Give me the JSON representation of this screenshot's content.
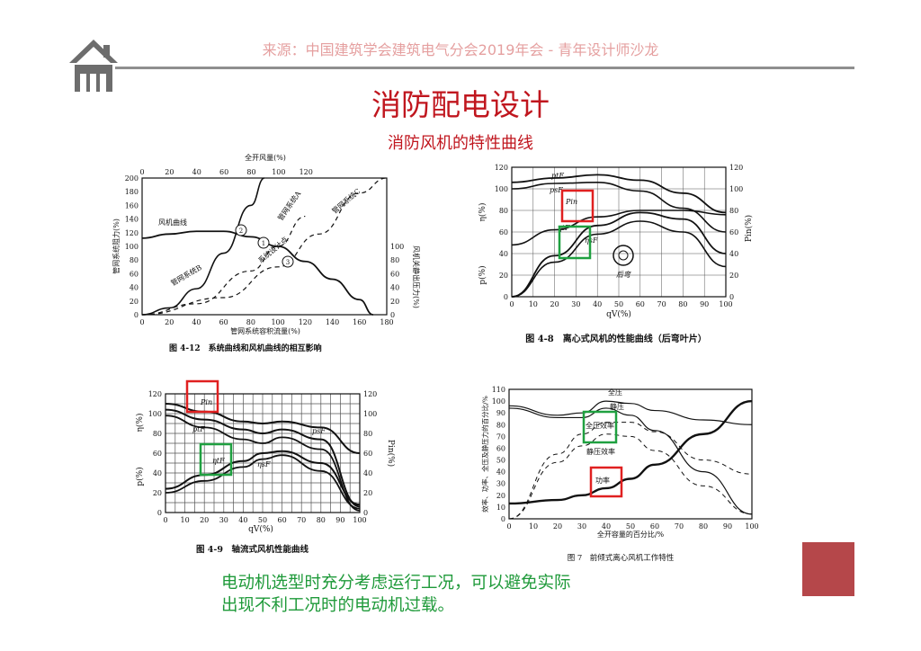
{
  "header": {
    "source": "来源：中国建筑学会建筑电气分会2019年会 - 青年设计师沙龙",
    "title": "消防配电设计",
    "subtitle": "消防风机的特性曲线",
    "home_icon": "home-icon"
  },
  "footer": {
    "note_line1": "电动机选型时充分考虑运行工况，可以避免实际",
    "note_line2": "出现不利工况时的电动机过载。"
  },
  "colors": {
    "accent_red": "#c0161e",
    "note_green": "#1f9a3a",
    "highlight_red": "#e02020",
    "highlight_green": "#1fa040",
    "corner_block": "#b5474a"
  },
  "chart_data": [
    {
      "type": "line",
      "caption": "图 4-12　系统曲线和风机曲线的相互影响",
      "top_axis_label": "全开风量(%)",
      "top_ticks": [
        "0",
        "20",
        "40",
        "60",
        "80",
        "100",
        "120"
      ],
      "xlabel": "管网系统容积流量(%)",
      "x_ticks": [
        "0",
        "20",
        "40",
        "60",
        "80",
        "100",
        "120",
        "140",
        "160",
        "180"
      ],
      "ylabel_left": "管网系统阻力(%)",
      "y_ticks_left": [
        "0",
        "20",
        "40",
        "60",
        "80",
        "100",
        "120",
        "140",
        "160",
        "180",
        "200"
      ],
      "ylabel_right": "风机关静出压力(%)",
      "y_ticks_right": [
        "0",
        "20",
        "40",
        "60",
        "80",
        "100"
      ],
      "annotations": [
        "风机曲线",
        "管网系统A",
        "管网系统B",
        "管网系统C",
        "系统设计点",
        "1",
        "2",
        "3"
      ],
      "xlim": [
        0,
        180
      ],
      "ylim": [
        0,
        200
      ],
      "series": [
        {
          "name": "风机曲线",
          "x": [
            0,
            20,
            40,
            60,
            80,
            100,
            120,
            140,
            160,
            170
          ],
          "y": [
            112,
            118,
            122,
            122,
            114,
            100,
            78,
            52,
            22,
            0
          ]
        },
        {
          "name": "管网系统A",
          "x": [
            0,
            20,
            40,
            60,
            80,
            90
          ],
          "y": [
            0,
            10,
            38,
            90,
            160,
            200
          ]
        },
        {
          "name": "管网系统B",
          "x": [
            0,
            40,
            80,
            100,
            120
          ],
          "y": [
            0,
            16,
            64,
            100,
            144
          ]
        },
        {
          "name": "管网系统C",
          "x": [
            0,
            60,
            100,
            130,
            160,
            180
          ],
          "y": [
            0,
            25,
            70,
            118,
            178,
            200
          ]
        }
      ]
    },
    {
      "type": "line",
      "caption": "图 4-8　离心式风机的性能曲线（后弯叶片）",
      "xlabel": "qV(%)",
      "x_ticks": [
        "0",
        "10",
        "20",
        "30",
        "40",
        "50",
        "60",
        "70",
        "80",
        "90",
        "100"
      ],
      "ylabel_left_top": "η(%)",
      "ylabel_left_bottom": "p(%)",
      "ylabel_right": "Pin(%)",
      "y_ticks_left": [
        "0",
        "20",
        "40",
        "60",
        "80",
        "100",
        "120"
      ],
      "y_ticks_right": [
        "0",
        "20",
        "40",
        "60",
        "80",
        "100",
        "120"
      ],
      "annotations": [
        "ptF",
        "psF",
        "Pin",
        "ηtF",
        "ηsF",
        "后弯"
      ],
      "highlights": [
        "Pin",
        "η"
      ],
      "xlim": [
        0,
        100
      ],
      "ylim": [
        0,
        120
      ],
      "series": [
        {
          "name": "ptF",
          "x": [
            0,
            20,
            40,
            60,
            80,
            100
          ],
          "y": [
            106,
            110,
            113,
            108,
            96,
            78
          ]
        },
        {
          "name": "psF",
          "x": [
            0,
            20,
            40,
            60,
            80,
            100
          ],
          "y": [
            100,
            105,
            106,
            98,
            82,
            60
          ]
        },
        {
          "name": "Pin",
          "x": [
            0,
            20,
            40,
            60,
            80,
            100
          ],
          "y": [
            48,
            62,
            74,
            80,
            80,
            76
          ]
        },
        {
          "name": "ηtF",
          "x": [
            0,
            20,
            40,
            60,
            80,
            100
          ],
          "y": [
            0,
            38,
            66,
            78,
            72,
            40
          ]
        },
        {
          "name": "ηsF",
          "x": [
            0,
            20,
            40,
            60,
            80,
            100
          ],
          "y": [
            0,
            32,
            58,
            70,
            60,
            28
          ]
        }
      ]
    },
    {
      "type": "line",
      "caption": "图 4-9　轴流式风机性能曲线",
      "xlabel": "qV(%)",
      "x_ticks": [
        "0",
        "10",
        "20",
        "30",
        "40",
        "50",
        "60",
        "70",
        "80",
        "90",
        "100"
      ],
      "ylabel_left_top": "η(%)",
      "ylabel_left_bottom": "p(%)",
      "ylabel_right": "Pin(%)",
      "y_ticks_left": [
        "0",
        "20",
        "40",
        "60",
        "80",
        "100",
        "120"
      ],
      "y_ticks_right": [
        "0",
        "20",
        "40",
        "60",
        "80",
        "100",
        "120"
      ],
      "annotations": [
        "Pin",
        "ptF",
        "psF",
        "ηtF",
        "ηsF"
      ],
      "highlights": [
        "Pin",
        "ηtF"
      ],
      "xlim": [
        0,
        100
      ],
      "ylim": [
        0,
        120
      ],
      "series": [
        {
          "name": "Pin",
          "x": [
            0,
            20,
            40,
            50,
            60,
            80,
            100
          ],
          "y": [
            110,
            102,
            92,
            90,
            92,
            86,
            60
          ]
        },
        {
          "name": "ptF",
          "x": [
            0,
            20,
            40,
            50,
            60,
            80,
            100
          ],
          "y": [
            104,
            94,
            84,
            80,
            84,
            74,
            6
          ]
        },
        {
          "name": "psF",
          "x": [
            0,
            20,
            40,
            50,
            60,
            80,
            100
          ],
          "y": [
            98,
            86,
            74,
            70,
            76,
            64,
            2
          ]
        },
        {
          "name": "ηtF",
          "x": [
            0,
            20,
            40,
            50,
            60,
            80,
            100
          ],
          "y": [
            24,
            38,
            52,
            60,
            62,
            50,
            8
          ]
        },
        {
          "name": "ηsF",
          "x": [
            0,
            20,
            40,
            50,
            60,
            80,
            100
          ],
          "y": [
            20,
            32,
            46,
            54,
            58,
            42,
            4
          ]
        }
      ]
    },
    {
      "type": "line",
      "caption": "图 7　前倾式离心风机工作特性",
      "xlabel": "全开容量的百分比/%",
      "ylabel": "效率、功率、全压及静压力的百分比/%",
      "x_ticks": [
        "0",
        "10",
        "20",
        "30",
        "40",
        "50",
        "60",
        "70",
        "80",
        "90",
        "100"
      ],
      "y_ticks": [
        "0",
        "10",
        "20",
        "30",
        "40",
        "50",
        "60",
        "70",
        "80",
        "90",
        "100",
        "110"
      ],
      "annotations": [
        "全压",
        "静压",
        "全压效率",
        "静压效率",
        "功率"
      ],
      "highlights": [
        "全压效率",
        "功率"
      ],
      "xlim": [
        0,
        100
      ],
      "ylim": [
        0,
        110
      ],
      "series": [
        {
          "name": "全压",
          "x": [
            0,
            20,
            30,
            40,
            50,
            60,
            80,
            100
          ],
          "y": [
            96,
            88,
            90,
            100,
            98,
            92,
            84,
            80
          ]
        },
        {
          "name": "静压",
          "x": [
            0,
            20,
            30,
            40,
            50,
            60,
            80,
            100
          ],
          "y": [
            94,
            86,
            86,
            94,
            88,
            75,
            40,
            4
          ]
        },
        {
          "name": "全压效率",
          "x": [
            0,
            20,
            30,
            40,
            50,
            60,
            80,
            100
          ],
          "y": [
            0,
            55,
            72,
            82,
            82,
            74,
            50,
            38
          ]
        },
        {
          "name": "静压效率",
          "x": [
            0,
            20,
            30,
            40,
            50,
            60,
            80,
            100
          ],
          "y": [
            0,
            48,
            62,
            72,
            70,
            58,
            28,
            4
          ]
        },
        {
          "name": "功率",
          "x": [
            0,
            20,
            30,
            40,
            50,
            60,
            80,
            100
          ],
          "y": [
            13,
            16,
            20,
            26,
            34,
            46,
            72,
            100
          ]
        }
      ]
    }
  ]
}
